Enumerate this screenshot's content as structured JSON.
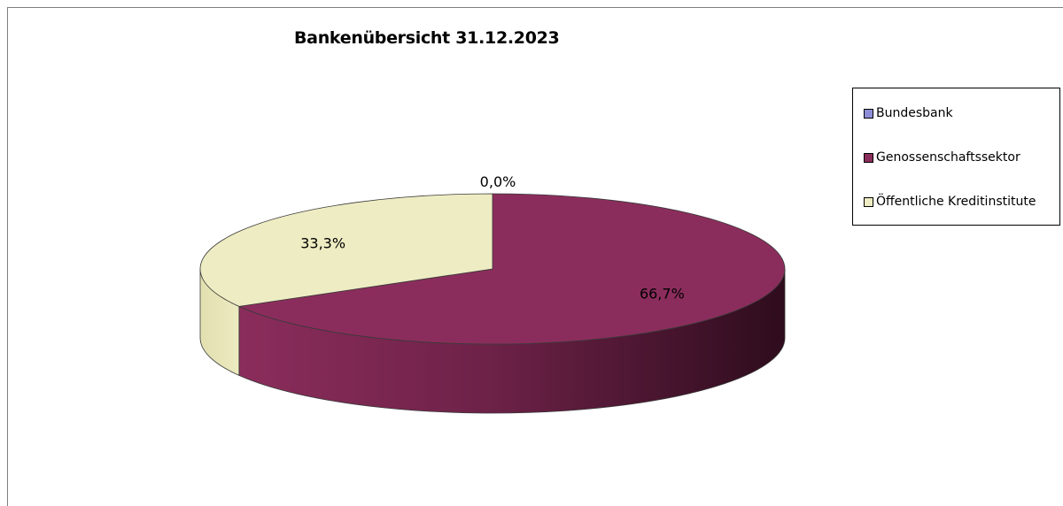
{
  "chart_data": {
    "type": "pie",
    "title": "Bankenübersicht 31.12.2023",
    "categories": [
      "Bundesbank",
      "Genossenschaftssektor",
      "Öffentliche Kreditinstitute"
    ],
    "values": [
      0.0,
      66.7,
      33.3
    ],
    "data_labels": [
      "0,0%",
      "66,7%",
      "33,3%"
    ],
    "colors": [
      "#8e8ed8",
      "#8b2d5c",
      "#eeecc2"
    ],
    "legend_position": "right",
    "style": "3d"
  }
}
